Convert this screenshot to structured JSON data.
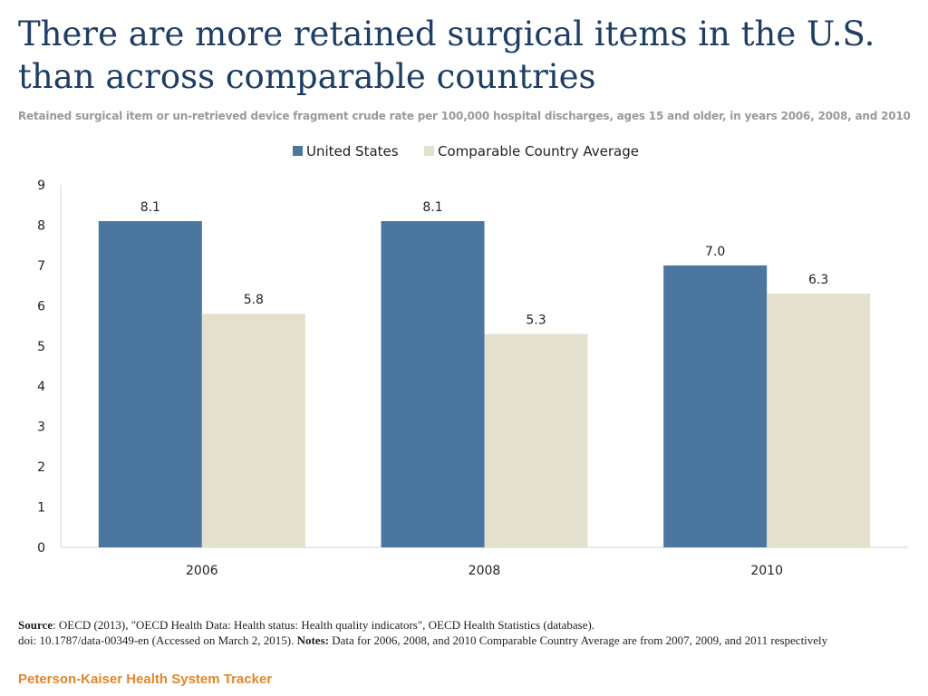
{
  "colors": {
    "us": "#4a76a0",
    "comparable": "#e4e0ce",
    "title": "#1f3e64",
    "brand": "#e3862c"
  },
  "footer": {
    "source_label": "Source",
    "source_text": ": OECD (2013), \"OECD Health Data: Health status: Health quality  indicators\", OECD Health Statistics (database).",
    "doi_text": "doi: 10.1787/data-00349-en (Accessed on March 2,  2015). ",
    "notes_label": "Notes:",
    "notes_text": " Data for 2006, 2008, and 2010 Comparable Country Average are from 2007, 2009, and 2011 respectively"
  },
  "brand": "Peterson-Kaiser Health System Tracker",
  "chart_data": {
    "type": "bar",
    "title": "There are more retained surgical items in the U.S. than across comparable countries",
    "subtitle": "Retained surgical item or un-retrieved device fragment crude rate per 100,000 hospital discharges, ages 15 and older, in years 2006, 2008, and 2010",
    "categories": [
      "2006",
      "2008",
      "2010"
    ],
    "series": [
      {
        "name": "United States",
        "values": [
          8.1,
          8.1,
          7.0
        ],
        "labels": [
          "8.1",
          "8.1",
          "7.0"
        ]
      },
      {
        "name": "Comparable Country Average",
        "values": [
          5.8,
          5.3,
          6.3
        ],
        "labels": [
          "5.8",
          "5.3",
          "6.3"
        ]
      }
    ],
    "yticks": [
      "0",
      "1",
      "2",
      "3",
      "4",
      "5",
      "6",
      "7",
      "8",
      "9"
    ],
    "ylim": [
      0,
      9
    ],
    "xlabel": "",
    "ylabel": "",
    "legend_position": "top-center",
    "grid": false
  }
}
